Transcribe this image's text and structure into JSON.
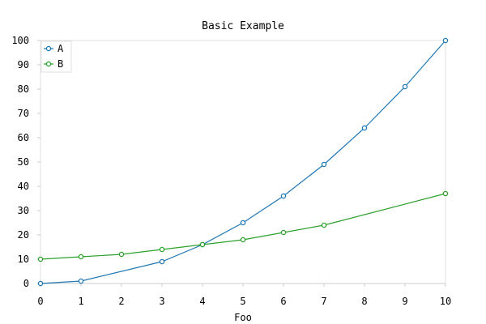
{
  "chart_data": {
    "type": "line",
    "title": "Basic Example",
    "xlabel": "Foo",
    "ylabel": "",
    "xlim": [
      0,
      10
    ],
    "ylim": [
      0,
      100
    ],
    "xticks": [
      0,
      1,
      2,
      3,
      4,
      5,
      6,
      7,
      8,
      9,
      10
    ],
    "yticks": [
      0,
      10,
      20,
      30,
      40,
      50,
      60,
      70,
      80,
      90,
      100
    ],
    "grid": false,
    "legend_position": "top-left",
    "series": [
      {
        "name": "A",
        "color": "#1f77b4",
        "points": [
          [
            0,
            0
          ],
          [
            1,
            1
          ],
          [
            3,
            9
          ],
          [
            4,
            16
          ],
          [
            5,
            25
          ],
          [
            6,
            36
          ],
          [
            7,
            49
          ],
          [
            8,
            64
          ],
          [
            9,
            81
          ],
          [
            10,
            100
          ]
        ]
      },
      {
        "name": "B",
        "color": "#2ca02c",
        "points": [
          [
            0,
            10
          ],
          [
            1,
            11
          ],
          [
            2,
            12
          ],
          [
            3,
            14
          ],
          [
            4,
            16
          ],
          [
            5,
            18
          ],
          [
            6,
            21
          ],
          [
            7,
            24
          ],
          [
            10,
            37
          ]
        ]
      }
    ]
  }
}
